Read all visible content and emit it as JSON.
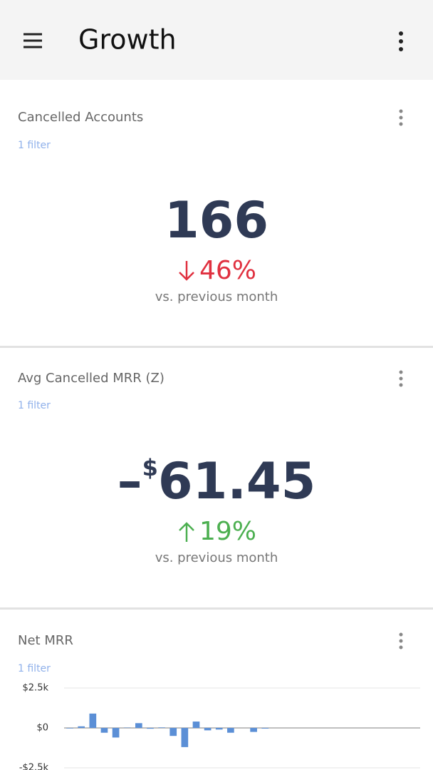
{
  "app_bar": {
    "title": "Growth"
  },
  "cards": [
    {
      "title": "Cancelled Accounts",
      "filter": "1 filter",
      "value": "166",
      "change": "46%",
      "comparison": "vs. previous month"
    },
    {
      "title": "Avg Cancelled MRR (Z)",
      "filter": "1 filter",
      "sign": "–",
      "currency": "$",
      "value": "61.45",
      "change": "19%",
      "comparison": "vs. previous month"
    }
  ],
  "chart_card": {
    "title": "Net MRR",
    "filter": "1 filter"
  },
  "chart_data": {
    "type": "bar",
    "categories": [
      null,
      null,
      null,
      null,
      null,
      null,
      null,
      null,
      null,
      null,
      null,
      null,
      null,
      null,
      null,
      null,
      null,
      null,
      null,
      null,
      null,
      null,
      null,
      null,
      null,
      null,
      null,
      null,
      null,
      null,
      null
    ],
    "values": [
      -30,
      100,
      900,
      -300,
      -600,
      20,
      300,
      -50,
      30,
      -500,
      -1200,
      400,
      -150,
      -100,
      -300,
      0,
      -250,
      -40,
      0,
      0,
      0,
      0,
      0,
      0,
      0,
      0,
      0,
      0,
      0,
      0,
      0
    ],
    "color": "#5b8fd6",
    "ylim": [
      -2500,
      2500
    ],
    "yticks": [
      {
        "value": 2500,
        "label": "$2.5k"
      },
      {
        "value": 0,
        "label": "$0"
      },
      {
        "value": -2500,
        "label": "-$2.5k"
      }
    ],
    "grid": true
  }
}
